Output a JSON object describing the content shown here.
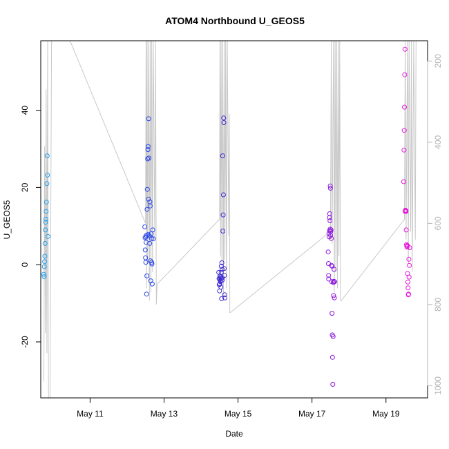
{
  "chart_data": {
    "type": "scatter",
    "title": "ATOM4 Northbound U_GEOS5",
    "xlabel": "Date",
    "ylabel": "U_GEOS5",
    "xlim": [
      "2016-05-09 16:00",
      "2016-05-20 03:00"
    ],
    "ylim": [
      -34.5,
      58.0
    ],
    "x_ticks": [
      "May 11",
      "May 13",
      "May 15",
      "May 17",
      "May 19"
    ],
    "x_tick_dates": [
      "2016-05-11",
      "2016-05-13",
      "2016-05-15",
      "2016-05-17",
      "2016-05-19"
    ],
    "y_ticks": [
      -20,
      0,
      20,
      40
    ],
    "y_tick_labels": [
      "-20",
      "0",
      "20",
      "40"
    ],
    "secondary_axis": {
      "label": "",
      "ylim": [
        1030,
        150
      ],
      "ticks": [
        200,
        400,
        600,
        800,
        1000
      ],
      "tick_labels": [
        "200",
        "400",
        "600",
        "800",
        "1000"
      ],
      "color": "#b4b4b4",
      "series_color": "#c8c8c8",
      "inverted": true,
      "trace": [
        [
          "2016-05-09 18:00",
          990
        ],
        [
          "2016-05-09 18:30",
          410
        ],
        [
          "2016-05-09 19:00",
          870
        ],
        [
          "2016-05-09 19:30",
          270
        ],
        [
          "2016-05-09 20:00",
          920
        ],
        [
          "2016-05-09 20:30",
          150
        ],
        [
          "2016-05-09 21:00",
          1130
        ],
        [
          "2016-05-09 22:00",
          1130
        ],
        [
          "2016-05-09 23:00",
          150
        ],
        [
          "2016-05-10 11:00",
          150
        ],
        [
          "2016-05-12 12:00",
          600
        ],
        [
          "2016-05-12 12:20",
          150
        ],
        [
          "2016-05-12 12:40",
          760
        ],
        [
          "2016-05-12 13:00",
          150
        ],
        [
          "2016-05-12 13:20",
          700
        ],
        [
          "2016-05-12 14:00",
          150
        ],
        [
          "2016-05-12 14:30",
          790
        ],
        [
          "2016-05-12 15:00",
          150
        ],
        [
          "2016-05-12 15:30",
          770
        ],
        [
          "2016-05-12 16:00",
          150
        ],
        [
          "2016-05-12 16:30",
          720
        ],
        [
          "2016-05-12 17:00",
          150
        ],
        [
          "2016-05-12 18:00",
          640
        ],
        [
          "2016-05-12 18:30",
          150
        ],
        [
          "2016-05-12 19:00",
          800
        ],
        [
          "2016-05-12 19:30",
          750
        ],
        [
          "2016-05-14 12:00",
          590
        ],
        [
          "2016-05-14 12:20",
          150
        ],
        [
          "2016-05-14 12:40",
          680
        ],
        [
          "2016-05-14 13:00",
          150
        ],
        [
          "2016-05-14 13:30",
          700
        ],
        [
          "2016-05-14 14:00",
          150
        ],
        [
          "2016-05-14 14:30",
          780
        ],
        [
          "2016-05-14 15:00",
          150
        ],
        [
          "2016-05-14 15:30",
          690
        ],
        [
          "2016-05-14 16:00",
          150
        ],
        [
          "2016-05-14 16:30",
          760
        ],
        [
          "2016-05-14 17:00",
          150
        ],
        [
          "2016-05-14 18:00",
          630
        ],
        [
          "2016-05-14 18:20",
          330
        ],
        [
          "2016-05-14 18:40",
          820
        ],
        [
          "2016-05-14 19:00",
          820
        ],
        [
          "2016-05-17 12:00",
          620
        ],
        [
          "2016-05-17 12:30",
          150
        ],
        [
          "2016-05-17 13:00",
          650
        ],
        [
          "2016-05-17 14:00",
          150
        ],
        [
          "2016-05-17 14:30",
          770
        ],
        [
          "2016-05-17 15:00",
          150
        ],
        [
          "2016-05-17 15:30",
          720
        ],
        [
          "2016-05-17 16:00",
          150
        ],
        [
          "2016-05-17 16:30",
          760
        ],
        [
          "2016-05-17 17:00",
          150
        ],
        [
          "2016-05-17 17:30",
          680
        ],
        [
          "2016-05-17 18:00",
          150
        ],
        [
          "2016-05-17 18:30",
          790
        ],
        [
          "2016-05-17 19:00",
          790
        ],
        [
          "2016-05-19 12:00",
          590
        ],
        [
          "2016-05-19 12:30",
          150
        ],
        [
          "2016-05-19 13:00",
          640
        ],
        [
          "2016-05-19 14:00",
          150
        ],
        [
          "2016-05-19 14:30",
          700
        ],
        [
          "2016-05-19 15:00",
          150
        ],
        [
          "2016-05-19 16:00",
          620
        ],
        [
          "2016-05-19 16:30",
          150
        ],
        [
          "2016-05-19 17:00",
          720
        ],
        [
          "2016-05-19 18:00",
          150
        ],
        [
          "2016-05-19 19:00",
          640
        ],
        [
          "2016-05-19 19:30",
          150
        ],
        [
          "2016-05-19 20:00",
          150
        ]
      ]
    },
    "grid": false,
    "legend": "none",
    "marker": "open-circle",
    "series": [
      {
        "color": "#1ea0f0",
        "points": [
          [
            "2016-05-09 18:00",
            -2.5
          ],
          [
            "2016-05-09 18:10",
            -3.1
          ],
          [
            "2016-05-09 18:20",
            -0.5
          ],
          [
            "2016-05-09 18:30",
            0.8
          ],
          [
            "2016-05-09 18:40",
            2.2
          ],
          [
            "2016-05-09 18:50",
            5.5
          ],
          [
            "2016-05-09 19:00",
            9.0
          ],
          [
            "2016-05-09 19:10",
            11.0
          ],
          [
            "2016-05-09 19:20",
            11.8
          ],
          [
            "2016-05-09 19:30",
            13.8
          ],
          [
            "2016-05-09 19:40",
            16.2
          ],
          [
            "2016-05-09 20:00",
            21.0
          ],
          [
            "2016-05-09 20:10",
            28.2
          ],
          [
            "2016-05-09 20:20",
            23.2
          ],
          [
            "2016-05-09 20:40",
            7.3
          ]
        ]
      },
      {
        "color": "#2846e6",
        "points": [
          [
            "2016-05-12 11:30",
            9.8
          ],
          [
            "2016-05-12 11:40",
            7.0
          ],
          [
            "2016-05-12 11:50",
            3.8
          ],
          [
            "2016-05-12 12:00",
            1.8
          ],
          [
            "2016-05-12 12:10",
            0.6
          ],
          [
            "2016-05-12 12:20",
            5.8
          ],
          [
            "2016-05-12 12:30",
            7.6
          ],
          [
            "2016-05-12 12:40",
            -7.6
          ],
          [
            "2016-05-12 12:50",
            -2.9
          ],
          [
            "2016-05-12 13:00",
            14.3
          ],
          [
            "2016-05-12 13:10",
            19.5
          ],
          [
            "2016-05-12 13:20",
            27.4
          ],
          [
            "2016-05-12 13:30",
            29.8
          ],
          [
            "2016-05-12 13:40",
            30.6
          ],
          [
            "2016-05-12 13:50",
            17.0
          ],
          [
            "2016-05-12 14:00",
            37.8
          ],
          [
            "2016-05-12 14:10",
            27.6
          ],
          [
            "2016-05-12 14:30",
            7.5
          ],
          [
            "2016-05-12 14:40",
            5.5
          ],
          [
            "2016-05-12 14:50",
            16.3
          ],
          [
            "2016-05-12 15:00",
            15.2
          ],
          [
            "2016-05-12 15:10",
            1.0
          ],
          [
            "2016-05-12 15:20",
            -4.2
          ],
          [
            "2016-05-12 15:40",
            8.0
          ],
          [
            "2016-05-12 15:50",
            6.8
          ],
          [
            "2016-05-12 16:00",
            0.6
          ],
          [
            "2016-05-12 16:10",
            0.2
          ],
          [
            "2016-05-12 16:20",
            -5.0
          ],
          [
            "2016-05-12 16:40",
            9.0
          ],
          [
            "2016-05-12 17:00",
            6.7
          ],
          [
            "2016-05-12 12:15",
            7.2
          ],
          [
            "2016-05-12 13:35",
            7.8
          ]
        ]
      },
      {
        "color": "#3c28d2",
        "points": [
          [
            "2016-05-14 11:30",
            -2.0
          ],
          [
            "2016-05-14 11:40",
            -3.6
          ],
          [
            "2016-05-14 11:50",
            -5.2
          ],
          [
            "2016-05-14 12:00",
            -6.8
          ],
          [
            "2016-05-14 12:10",
            -5.0
          ],
          [
            "2016-05-14 12:20",
            -3.0
          ],
          [
            "2016-05-14 12:30",
            -4.2
          ],
          [
            "2016-05-14 12:40",
            -3.2
          ],
          [
            "2016-05-14 12:50",
            -5.8
          ],
          [
            "2016-05-14 13:00",
            -3.6
          ],
          [
            "2016-05-14 13:10",
            -0.4
          ],
          [
            "2016-05-14 13:20",
            -8.8
          ],
          [
            "2016-05-14 13:30",
            0.5
          ],
          [
            "2016-05-14 13:40",
            -1.2
          ],
          [
            "2016-05-14 13:50",
            -3.4
          ],
          [
            "2016-05-14 14:00",
            28.2
          ],
          [
            "2016-05-14 14:10",
            8.7
          ],
          [
            "2016-05-14 14:20",
            12.9
          ],
          [
            "2016-05-14 14:30",
            18.1
          ],
          [
            "2016-05-14 14:40",
            38.0
          ],
          [
            "2016-05-14 14:50",
            36.8
          ],
          [
            "2016-05-14 15:00",
            -1.0
          ],
          [
            "2016-05-14 15:10",
            -2.8
          ],
          [
            "2016-05-14 15:20",
            -7.8
          ],
          [
            "2016-05-14 15:30",
            -8.6
          ],
          [
            "2016-05-14 12:05",
            -3.8
          ],
          [
            "2016-05-14 12:35",
            -4.4
          ],
          [
            "2016-05-14 13:05",
            -2.0
          ],
          [
            "2016-05-14 13:45",
            -4.0
          ]
        ]
      },
      {
        "color": "#8c14dc",
        "points": [
          [
            "2016-05-17 10:30",
            3.3
          ],
          [
            "2016-05-17 10:40",
            0.3
          ],
          [
            "2016-05-17 10:50",
            -3.7
          ],
          [
            "2016-05-17 11:00",
            8.1
          ],
          [
            "2016-05-17 11:10",
            7.2
          ],
          [
            "2016-05-17 11:20",
            12.2
          ],
          [
            "2016-05-17 11:30",
            13.2
          ],
          [
            "2016-05-17 11:40",
            11.4
          ],
          [
            "2016-05-17 11:50",
            20.4
          ],
          [
            "2016-05-17 12:00",
            19.8
          ],
          [
            "2016-05-17 12:10",
            8.6
          ],
          [
            "2016-05-17 12:20",
            9.0
          ],
          [
            "2016-05-17 12:30",
            6.8
          ],
          [
            "2016-05-17 12:40",
            -0.2
          ],
          [
            "2016-05-17 12:50",
            -4.4
          ],
          [
            "2016-05-17 13:00",
            -12.6
          ],
          [
            "2016-05-17 13:10",
            -18.2
          ],
          [
            "2016-05-17 13:20",
            -24.0
          ],
          [
            "2016-05-17 13:30",
            -31.0
          ],
          [
            "2016-05-17 13:40",
            -18.6
          ],
          [
            "2016-05-17 13:50",
            -4.6
          ],
          [
            "2016-05-17 14:00",
            -8.0
          ],
          [
            "2016-05-17 14:10",
            -4.3
          ],
          [
            "2016-05-17 14:20",
            -1.2
          ],
          [
            "2016-05-17 14:30",
            -8.6
          ],
          [
            "2016-05-17 11:25",
            8.8
          ],
          [
            "2016-05-17 11:45",
            9.2
          ],
          [
            "2016-05-17 12:05",
            7.6
          ],
          [
            "2016-05-17 13:05",
            -0.4
          ],
          [
            "2016-05-17 14:40",
            -4.4
          ],
          [
            "2016-05-17 10:45",
            -2.8
          ]
        ]
      },
      {
        "color": "#e614dc",
        "points": [
          [
            "2016-05-19 11:30",
            21.5
          ],
          [
            "2016-05-19 11:40",
            29.7
          ],
          [
            "2016-05-19 11:50",
            34.8
          ],
          [
            "2016-05-19 12:00",
            40.8
          ],
          [
            "2016-05-19 12:10",
            49.2
          ],
          [
            "2016-05-19 12:20",
            55.8
          ],
          [
            "2016-05-19 12:30",
            13.8
          ],
          [
            "2016-05-19 12:40",
            14.1
          ],
          [
            "2016-05-19 12:50",
            14.0
          ],
          [
            "2016-05-19 13:00",
            13.8
          ],
          [
            "2016-05-19 13:10",
            9.0
          ],
          [
            "2016-05-19 13:20",
            5.2
          ],
          [
            "2016-05-19 13:30",
            4.8
          ],
          [
            "2016-05-19 13:40",
            4.6
          ],
          [
            "2016-05-19 13:50",
            5.0
          ],
          [
            "2016-05-19 14:00",
            -2.3
          ],
          [
            "2016-05-19 14:10",
            -4.5
          ],
          [
            "2016-05-19 14:20",
            -6.0
          ],
          [
            "2016-05-19 14:30",
            -7.8
          ],
          [
            "2016-05-19 14:40",
            -7.6
          ],
          [
            "2016-05-19 14:50",
            1.4
          ],
          [
            "2016-05-19 15:00",
            -3.2
          ],
          [
            "2016-05-19 15:10",
            -0.2
          ],
          [
            "2016-05-19 15:20",
            4.4
          ]
        ]
      }
    ]
  }
}
